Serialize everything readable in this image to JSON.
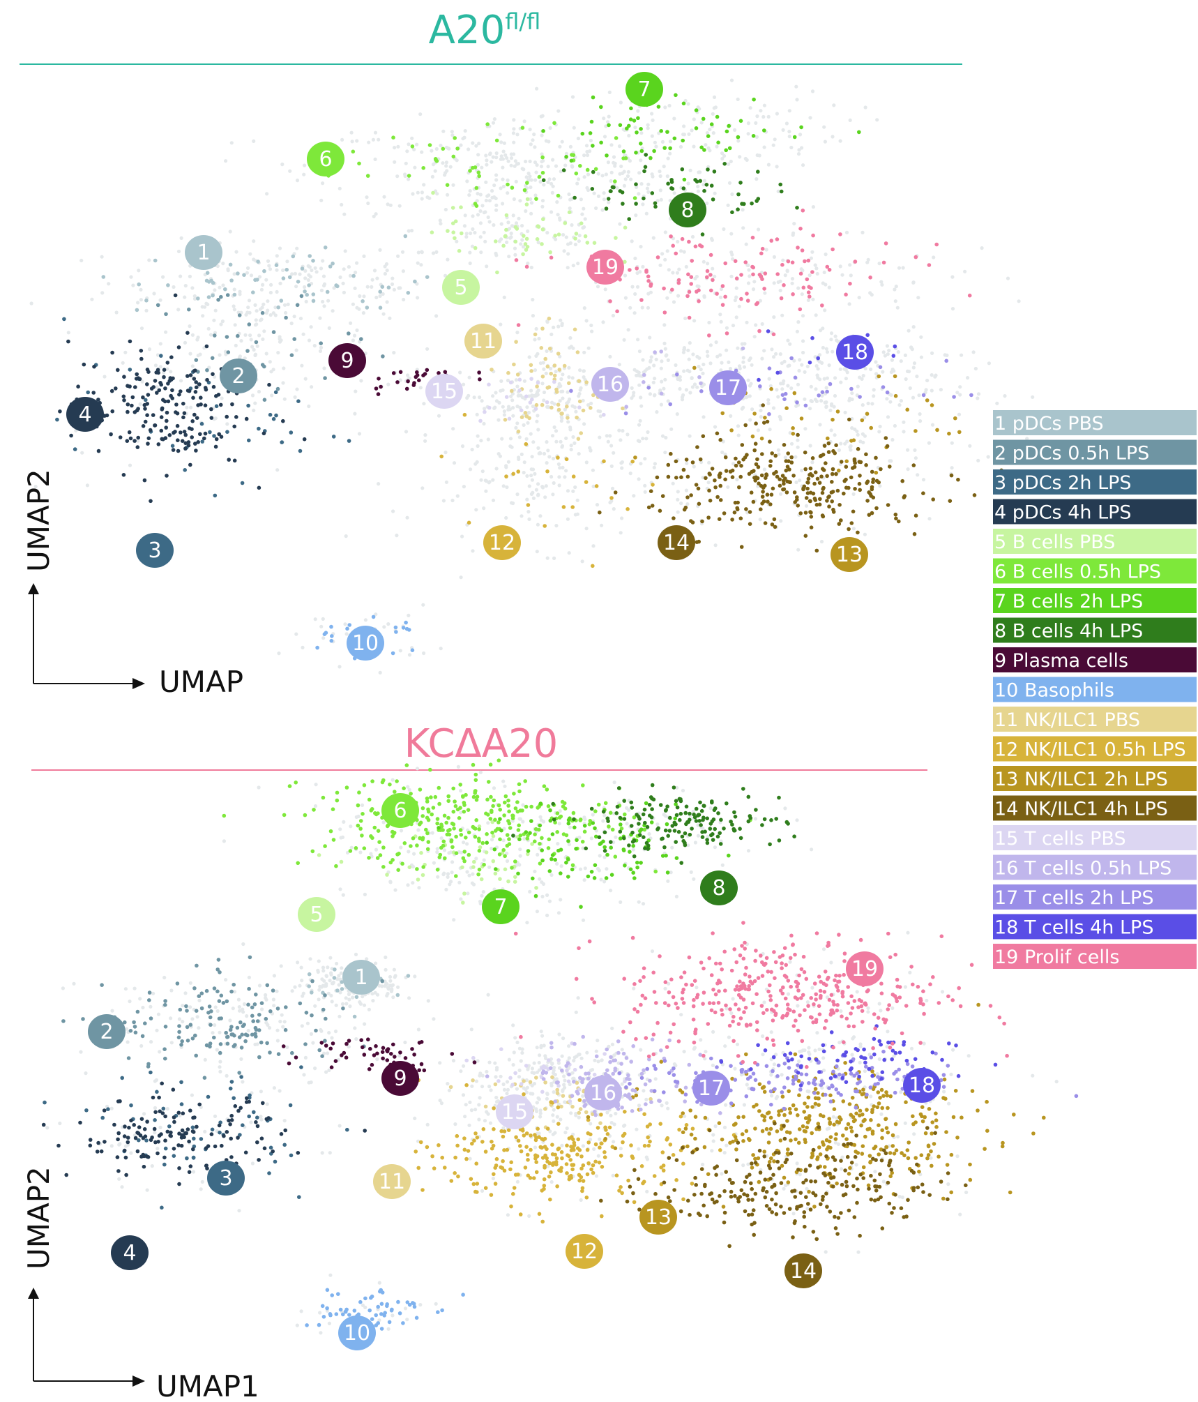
{
  "chart_data": {
    "type": "scatter",
    "xlabel_top": "UMAP",
    "ylabel_top": "UMAP2",
    "xlabel_bottom": "UMAP1",
    "ylabel_bottom": "UMAP2",
    "clusters": [
      {
        "id": 1,
        "label": "1 pDCs PBS",
        "color": "#a9c4cc"
      },
      {
        "id": 2,
        "label": "2 pDCs 0.5h LPS",
        "color": "#6f95a3"
      },
      {
        "id": 3,
        "label": "3 pDCs 2h LPS",
        "color": "#3d6a86"
      },
      {
        "id": 4,
        "label": "4 pDCs 4h LPS",
        "color": "#253b52"
      },
      {
        "id": 5,
        "label": "5 B cells PBS",
        "color": "#c7f5a0"
      },
      {
        "id": 6,
        "label": "6 B cells 0.5h LPS",
        "color": "#7ee83a"
      },
      {
        "id": 7,
        "label": "7 B cells 2h LPS",
        "color": "#5ad41e"
      },
      {
        "id": 8,
        "label": "8 B cells 4h LPS",
        "color": "#2f7d1c"
      },
      {
        "id": 9,
        "label": "9 Plasma cells",
        "color": "#4a0a36"
      },
      {
        "id": 10,
        "label": "10 Basophils",
        "color": "#7fb2ee"
      },
      {
        "id": 11,
        "label": "11 NK/ILC1 PBS",
        "color": "#e6d58f"
      },
      {
        "id": 12,
        "label": "12 NK/ILC1 0.5h  LPS",
        "color": "#d7b33a"
      },
      {
        "id": 13,
        "label": "13 NK/ILC1 2h  LPS",
        "color": "#b89520"
      },
      {
        "id": 14,
        "label": "14 NK/ILC1 4h  LPS",
        "color": "#7a6014"
      },
      {
        "id": 15,
        "label": "15 T cells PBS",
        "color": "#dcd6f2"
      },
      {
        "id": 16,
        "label": "16 T cells 0.5h LPS",
        "color": "#c0b6ec"
      },
      {
        "id": 17,
        "label": "17 T cells 2h LPS",
        "color": "#9a8ee8"
      },
      {
        "id": 18,
        "label": "18 T cells 4h LPS",
        "color": "#5a4ee6"
      },
      {
        "id": 19,
        "label": "19 Prolif cells",
        "color": "#f07aa0"
      }
    ],
    "panels": [
      {
        "title": "A20",
        "title_superscript": "fl/fl",
        "title_color": "#2bb8a0",
        "points": [
          {
            "cluster": 1,
            "x": 0.255,
            "y": 0.86,
            "sx": 0.085,
            "sy": 0.035,
            "n": 60,
            "faint": 160
          },
          {
            "cluster": 2,
            "x": 0.215,
            "y": 0.74,
            "sx": 0.06,
            "sy": 0.055,
            "n": 40,
            "faint": 150
          },
          {
            "cluster": 3,
            "x": 0.16,
            "y": 0.57,
            "sx": 0.08,
            "sy": 0.06,
            "n": 40,
            "faint": 20
          },
          {
            "cluster": 4,
            "x": 0.11,
            "y": 0.6,
            "sx": 0.05,
            "sy": 0.065,
            "n": 200,
            "faint": 10
          },
          {
            "cluster": 5,
            "x": 0.52,
            "y": 0.97,
            "sx": 0.05,
            "sy": 0.04,
            "n": 50,
            "faint": 120
          },
          {
            "cluster": 6,
            "x": 0.5,
            "y": 1.1,
            "sx": 0.09,
            "sy": 0.04,
            "n": 50,
            "faint": 260
          },
          {
            "cluster": 7,
            "x": 0.7,
            "y": 1.18,
            "sx": 0.08,
            "sy": 0.035,
            "n": 60,
            "faint": 120
          },
          {
            "cluster": 8,
            "x": 0.69,
            "y": 1.05,
            "sx": 0.06,
            "sy": 0.03,
            "n": 60,
            "faint": 60
          },
          {
            "cluster": 9,
            "x": 0.4,
            "y": 0.66,
            "sx": 0.03,
            "sy": 0.015,
            "n": 30,
            "faint": 10
          },
          {
            "cluster": 10,
            "x": 0.34,
            "y": 0.13,
            "sx": 0.035,
            "sy": 0.025,
            "n": 22,
            "faint": 30
          },
          {
            "cluster": 11,
            "x": 0.56,
            "y": 0.64,
            "sx": 0.03,
            "sy": 0.07,
            "n": 60,
            "faint": 120
          },
          {
            "cluster": 12,
            "x": 0.56,
            "y": 0.46,
            "sx": 0.07,
            "sy": 0.06,
            "n": 25,
            "faint": 200
          },
          {
            "cluster": 13,
            "x": 0.88,
            "y": 0.55,
            "sx": 0.08,
            "sy": 0.06,
            "n": 40,
            "faint": 120
          },
          {
            "cluster": 14,
            "x": 0.83,
            "y": 0.44,
            "sx": 0.08,
            "sy": 0.05,
            "n": 300,
            "faint": 40
          },
          {
            "cluster": 15,
            "x": 0.52,
            "y": 0.62,
            "sx": 0.03,
            "sy": 0.02,
            "n": 20,
            "faint": 60
          },
          {
            "cluster": 16,
            "x": 0.68,
            "y": 0.66,
            "sx": 0.04,
            "sy": 0.03,
            "n": 10,
            "faint": 120
          },
          {
            "cluster": 17,
            "x": 0.83,
            "y": 0.64,
            "sx": 0.09,
            "sy": 0.03,
            "n": 40,
            "faint": 80
          },
          {
            "cluster": 18,
            "x": 0.9,
            "y": 0.7,
            "sx": 0.06,
            "sy": 0.03,
            "n": 10,
            "faint": 120
          },
          {
            "cluster": 19,
            "x": 0.76,
            "y": 0.87,
            "sx": 0.1,
            "sy": 0.05,
            "n": 120,
            "faint": 200
          }
        ],
        "badges": [
          1,
          2,
          3,
          4,
          5,
          6,
          7,
          8,
          9,
          10,
          11,
          12,
          13,
          14,
          15,
          16,
          17,
          18,
          19
        ]
      },
      {
        "title": "KCΔA20",
        "title_superscript": "",
        "title_color": "#f07a9a",
        "points": [
          {
            "cluster": 1,
            "x": 0.33,
            "y": 0.86,
            "sx": 0.03,
            "sy": 0.02,
            "n": 20,
            "faint": 150
          },
          {
            "cluster": 2,
            "x": 0.19,
            "y": 0.78,
            "sx": 0.07,
            "sy": 0.05,
            "n": 140,
            "faint": 120
          },
          {
            "cluster": 3,
            "x": 0.16,
            "y": 0.56,
            "sx": 0.06,
            "sy": 0.06,
            "n": 60,
            "faint": 40
          },
          {
            "cluster": 4,
            "x": 0.13,
            "y": 0.54,
            "sx": 0.06,
            "sy": 0.04,
            "n": 140,
            "faint": 20
          },
          {
            "cluster": 5,
            "x": 0.47,
            "y": 1.1,
            "sx": 0.06,
            "sy": 0.04,
            "n": 40,
            "faint": 100
          },
          {
            "cluster": 6,
            "x": 0.46,
            "y": 1.2,
            "sx": 0.09,
            "sy": 0.05,
            "n": 320,
            "faint": 60
          },
          {
            "cluster": 7,
            "x": 0.61,
            "y": 1.14,
            "sx": 0.06,
            "sy": 0.04,
            "n": 90,
            "faint": 60
          },
          {
            "cluster": 8,
            "x": 0.7,
            "y": 1.2,
            "sx": 0.06,
            "sy": 0.03,
            "n": 160,
            "faint": 40
          },
          {
            "cluster": 9,
            "x": 0.36,
            "y": 0.72,
            "sx": 0.04,
            "sy": 0.02,
            "n": 50,
            "faint": 10
          },
          {
            "cluster": 10,
            "x": 0.34,
            "y": 0.18,
            "sx": 0.035,
            "sy": 0.025,
            "n": 60,
            "faint": 20
          },
          {
            "cluster": 11,
            "x": 0.54,
            "y": 0.62,
            "sx": 0.05,
            "sy": 0.04,
            "n": 40,
            "faint": 160
          },
          {
            "cluster": 12,
            "x": 0.57,
            "y": 0.5,
            "sx": 0.07,
            "sy": 0.05,
            "n": 260,
            "faint": 40
          },
          {
            "cluster": 13,
            "x": 0.87,
            "y": 0.56,
            "sx": 0.09,
            "sy": 0.06,
            "n": 360,
            "faint": 40
          },
          {
            "cluster": 14,
            "x": 0.83,
            "y": 0.44,
            "sx": 0.08,
            "sy": 0.05,
            "n": 240,
            "faint": 40
          },
          {
            "cluster": 15,
            "x": 0.56,
            "y": 0.68,
            "sx": 0.04,
            "sy": 0.03,
            "n": 30,
            "faint": 100
          },
          {
            "cluster": 16,
            "x": 0.63,
            "y": 0.66,
            "sx": 0.05,
            "sy": 0.04,
            "n": 110,
            "faint": 40
          },
          {
            "cluster": 17,
            "x": 0.85,
            "y": 0.66,
            "sx": 0.1,
            "sy": 0.025,
            "n": 140,
            "faint": 40
          },
          {
            "cluster": 18,
            "x": 0.89,
            "y": 0.7,
            "sx": 0.06,
            "sy": 0.03,
            "n": 70,
            "faint": 40
          },
          {
            "cluster": 19,
            "x": 0.82,
            "y": 0.84,
            "sx": 0.09,
            "sy": 0.06,
            "n": 360,
            "faint": 60
          }
        ],
        "badges": [
          1,
          2,
          3,
          4,
          5,
          6,
          7,
          8,
          9,
          10,
          11,
          12,
          13,
          14,
          15,
          16,
          17,
          18,
          19
        ]
      }
    ],
    "grid": false,
    "legend_placement": "right"
  }
}
